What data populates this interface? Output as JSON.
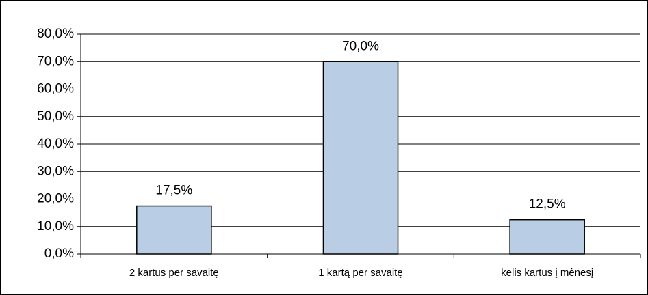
{
  "chart_data": {
    "type": "bar",
    "categories": [
      "2 kartus per savaitę",
      "1 kartą per savaitę",
      "kelis kartus į mėnesį"
    ],
    "values": [
      17.5,
      70.0,
      12.5
    ],
    "value_labels": [
      "17,5%",
      "70,0%",
      "12,5%"
    ],
    "color": "#b9cde5",
    "ylim": [
      0,
      80
    ],
    "yticks": [
      {
        "value": 0,
        "label": "0,0%"
      },
      {
        "value": 10,
        "label": "10,0%"
      },
      {
        "value": 20,
        "label": "20,0%"
      },
      {
        "value": 30,
        "label": "30,0%"
      },
      {
        "value": 40,
        "label": "40,0%"
      },
      {
        "value": 50,
        "label": "50,0%"
      },
      {
        "value": 60,
        "label": "60,0%"
      },
      {
        "value": 70,
        "label": "70,0%"
      },
      {
        "value": 80,
        "label": "80,0%"
      }
    ],
    "grid": true
  }
}
